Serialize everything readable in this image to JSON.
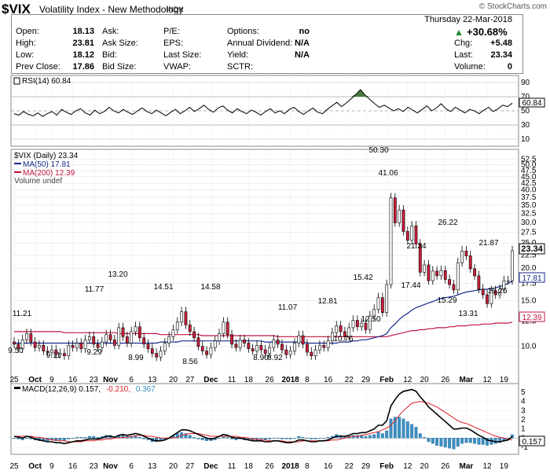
{
  "header": {
    "symbol": "$VIX",
    "name": "Volatility Index - New Methodology",
    "exchange": "INDX",
    "watermark": "© StockCharts.com"
  },
  "quote": {
    "open_label": "Open:",
    "open": "18.13",
    "high_label": "High:",
    "high": "23.81",
    "low_label": "Low:",
    "low": "18.12",
    "prev_close_label": "Prev Close:",
    "prev_close": "17.86",
    "ask_label": "Ask:",
    "ask_size_label": "Ask Size:",
    "bid_label": "Bid:",
    "bid_size_label": "Bid Size:",
    "pe_label": "P/E:",
    "eps_label": "EPS:",
    "last_size_label": "Last Size:",
    "vwap_label": "VWAP:",
    "options_label": "Options:",
    "options": "no",
    "dividend_label": "Annual Dividend:",
    "dividend": "N/A",
    "yield_label": "Yield:",
    "yield": "N/A",
    "sctr_label": "SCTR:",
    "date": "Thursday  22-Mar-2018",
    "pct_change": "+30.68%",
    "chg_label": "Chg:",
    "chg": "+5.48",
    "last_label": "Last:",
    "last": "23.34",
    "volume_label": "Volume:",
    "volume": "0"
  },
  "colors": {
    "up_candle": "#ffffff",
    "down_candle": "#cc1f3c",
    "ma50": "#1a2a8c",
    "ma200": "#c0143c",
    "rsi_line": "#000000",
    "rsi_fill": "#4a7a3a",
    "macd_line": "#000000",
    "signal_line": "#e0202a",
    "hist": "#3b8fc3"
  },
  "chart_data": [
    {
      "type": "line",
      "panel": "rsi",
      "legend": "RSI(14) 60.84",
      "last_value": "60.84",
      "y_ticks": [
        "90",
        "70",
        "50",
        "30",
        "10"
      ],
      "ylim": [
        0,
        100
      ],
      "values": [
        46,
        44,
        49,
        45,
        43,
        47,
        42,
        46,
        49,
        44,
        52,
        48,
        45,
        50,
        53,
        47,
        44,
        51,
        46,
        49,
        55,
        50,
        47,
        52,
        48,
        45,
        50,
        54,
        49,
        46,
        51,
        47,
        43,
        48,
        52,
        46,
        50,
        55,
        49,
        53,
        58,
        52,
        48,
        54,
        57,
        51,
        47,
        53,
        49,
        46,
        51,
        48,
        44,
        49,
        53,
        47,
        50,
        46,
        52,
        55,
        49,
        45,
        50,
        54,
        48,
        46,
        52,
        57,
        62,
        56,
        61,
        67,
        73,
        80,
        72,
        66,
        60,
        55,
        58,
        54,
        50,
        53,
        49,
        55,
        51,
        47,
        52,
        57,
        50,
        54,
        60,
        53,
        49,
        55,
        51,
        47,
        52,
        50,
        46,
        51,
        55,
        49,
        53,
        58,
        56,
        60.84
      ]
    },
    {
      "type": "candlestick",
      "panel": "price",
      "legend": [
        "$VIX (Daily) 23.34",
        "MA(50) 17.81",
        "MA(200) 12.39",
        "Volume undef"
      ],
      "y_ticks": [
        "52.5",
        "50.0",
        "47.5",
        "45.0",
        "42.5",
        "40.0",
        "37.5",
        "35.0",
        "32.5",
        "30.0",
        "27.5",
        "25.0",
        "22.5",
        "20.0",
        "17.5",
        "15.0",
        "12.5",
        "10.0"
      ],
      "x_ticks": [
        "25",
        "Oct",
        "9",
        "16",
        "23",
        "Nov",
        "6",
        "13",
        "20",
        "27",
        "Dec",
        "11",
        "18",
        "26",
        "2018",
        "8",
        "16",
        "22",
        "29",
        "Feb",
        "12",
        "20",
        "26",
        "Mar",
        "12",
        "19"
      ],
      "annotations": [
        "11.21",
        "9.50",
        "9.11",
        "11.77",
        "9.29",
        "13.20",
        "8.99",
        "14.51",
        "8.56",
        "14.58",
        "8.90",
        "11.07",
        "8.92",
        "10.76",
        "12.81",
        "12.50",
        "15.42",
        "50.30",
        "41.06",
        "21.34",
        "17.44",
        "26.22",
        "15.29",
        "13.31",
        "21.87",
        "16.26"
      ],
      "price_labels": {
        "last": "23.34",
        "ma50": "17.81",
        "ma200": "12.39"
      },
      "ylim": [
        7.5,
        55
      ],
      "scale": "log",
      "closes": [
        10.2,
        9.8,
        10.6,
        11.2,
        10.4,
        9.9,
        10.1,
        9.6,
        9.5,
        9.7,
        9.3,
        9.4,
        9.2,
        10.1,
        9.9,
        10.3,
        9.8,
        10.6,
        10.9,
        10.2,
        9.9,
        10.4,
        11.1,
        10.6,
        10.1,
        11.8,
        10.9,
        10.3,
        11.4,
        11.9,
        10.8,
        10.2,
        9.8,
        9.4,
        9.1,
        9.6,
        10.3,
        10.9,
        11.6,
        12.4,
        13.6,
        12.1,
        11.4,
        10.8,
        10.0,
        9.6,
        9.3,
        9.9,
        10.5,
        11.2,
        12.4,
        11.1,
        10.2,
        9.9,
        10.6,
        10.3,
        9.8,
        9.6,
        10.1,
        9.7,
        9.4,
        9.9,
        10.6,
        10.2,
        9.7,
        9.3,
        9.6,
        10.3,
        11.0,
        10.2,
        9.5,
        9.2,
        9.7,
        10.1,
        9.9,
        10.5,
        11.3,
        12.0,
        11.4,
        10.9,
        11.8,
        12.6,
        11.9,
        12.3,
        11.6,
        13.1,
        13.9,
        15.4,
        13.5,
        17.3,
        37.3,
        29.9,
        33.5,
        27.7,
        25.6,
        29.1,
        24.8,
        19.3,
        20.6,
        17.9,
        19.5,
        18.7,
        19.6,
        18.1,
        17.3,
        16.5,
        21.0,
        23.3,
        22.3,
        19.9,
        18.7,
        16.6,
        15.8,
        14.6,
        16.4,
        15.8,
        16.6,
        17.9,
        17.9,
        23.34
      ],
      "ma50": [
        10.3,
        10.3,
        10.3,
        10.3,
        10.3,
        10.3,
        10.3,
        10.3,
        10.3,
        10.3,
        10.3,
        10.3,
        10.3,
        10.3,
        10.3,
        10.3,
        10.3,
        10.3,
        10.3,
        10.3,
        10.3,
        10.3,
        10.3,
        10.3,
        10.3,
        10.3,
        10.3,
        10.3,
        10.3,
        10.3,
        10.3,
        10.3,
        10.3,
        10.3,
        10.3,
        10.4,
        10.4,
        10.4,
        10.4,
        10.4,
        10.5,
        10.5,
        10.5,
        10.5,
        10.5,
        10.5,
        10.5,
        10.5,
        10.5,
        10.5,
        10.5,
        10.5,
        10.5,
        10.5,
        10.5,
        10.5,
        10.5,
        10.5,
        10.5,
        10.5,
        10.4,
        10.4,
        10.4,
        10.4,
        10.4,
        10.4,
        10.4,
        10.4,
        10.4,
        10.4,
        10.3,
        10.3,
        10.3,
        10.3,
        10.3,
        10.3,
        10.3,
        10.3,
        10.4,
        10.4,
        10.4,
        10.5,
        10.5,
        10.6,
        10.6,
        10.7,
        10.8,
        10.9,
        11.0,
        11.2,
        11.8,
        12.2,
        12.7,
        13.1,
        13.4,
        13.8,
        14.1,
        14.3,
        14.5,
        14.7,
        14.9,
        15.1,
        15.3,
        15.4,
        15.5,
        15.6,
        15.8,
        16.0,
        16.2,
        16.3,
        16.4,
        16.5,
        16.6,
        16.6,
        16.7,
        16.8,
        17.0,
        17.2,
        17.5,
        17.81
      ],
      "ma200": [
        11.4,
        11.4,
        11.4,
        11.4,
        11.4,
        11.4,
        11.4,
        11.4,
        11.4,
        11.4,
        11.4,
        11.4,
        11.3,
        11.3,
        11.3,
        11.3,
        11.3,
        11.3,
        11.3,
        11.3,
        11.3,
        11.3,
        11.3,
        11.3,
        11.3,
        11.2,
        11.2,
        11.2,
        11.2,
        11.2,
        11.2,
        11.2,
        11.2,
        11.2,
        11.2,
        11.1,
        11.1,
        11.1,
        11.1,
        11.1,
        11.1,
        11.1,
        11.1,
        11.1,
        11.1,
        11.0,
        11.0,
        11.0,
        11.0,
        11.0,
        11.0,
        11.0,
        11.0,
        11.0,
        11.0,
        11.0,
        11.0,
        11.0,
        11.0,
        11.0,
        11.0,
        11.0,
        11.0,
        10.9,
        10.9,
        10.9,
        10.9,
        10.9,
        10.9,
        10.9,
        10.9,
        10.9,
        10.9,
        10.9,
        10.9,
        10.9,
        10.9,
        10.9,
        10.9,
        10.9,
        10.9,
        10.9,
        10.9,
        10.9,
        10.9,
        10.9,
        10.9,
        10.9,
        10.9,
        10.9,
        11.0,
        11.1,
        11.2,
        11.3,
        11.4,
        11.5,
        11.5,
        11.6,
        11.6,
        11.7,
        11.7,
        11.8,
        11.8,
        11.8,
        11.9,
        11.9,
        12.0,
        12.0,
        12.0,
        12.1,
        12.1,
        12.1,
        12.2,
        12.2,
        12.2,
        12.3,
        12.3,
        12.3,
        12.3,
        12.39
      ]
    },
    {
      "type": "line",
      "panel": "macd",
      "legend": "MACD(12,26,9) 0.157, -0.210, 0.367",
      "macd_label": "MACD(12,26,9) 0.157,",
      "signal_label": "-0.210,",
      "hist_label": "0.367",
      "last_value": "0.157",
      "y_ticks": [
        "5",
        "4",
        "3",
        "2",
        "1",
        "0",
        "-1"
      ],
      "ylim": [
        -1.6,
        5.6
      ],
      "macd": [
        0.2,
        0.1,
        0.0,
        0.2,
        0.1,
        -0.1,
        -0.2,
        -0.3,
        -0.4,
        -0.4,
        -0.5,
        -0.5,
        -0.6,
        -0.5,
        -0.4,
        -0.3,
        -0.3,
        -0.2,
        -0.1,
        -0.1,
        -0.1,
        0.0,
        0.2,
        0.2,
        0.1,
        0.3,
        0.4,
        0.3,
        0.4,
        0.5,
        0.4,
        0.2,
        0.0,
        -0.2,
        -0.3,
        -0.3,
        -0.2,
        0.0,
        0.3,
        0.6,
        0.9,
        0.9,
        0.8,
        0.6,
        0.4,
        0.2,
        0.0,
        -0.1,
        0.0,
        0.2,
        0.4,
        0.3,
        0.1,
        0.0,
        0.0,
        -0.1,
        -0.2,
        -0.3,
        -0.3,
        -0.3,
        -0.4,
        -0.4,
        -0.3,
        -0.3,
        -0.4,
        -0.5,
        -0.5,
        -0.4,
        -0.2,
        -0.2,
        -0.3,
        -0.4,
        -0.4,
        -0.3,
        -0.3,
        -0.2,
        0.0,
        0.2,
        0.2,
        0.2,
        0.3,
        0.5,
        0.5,
        0.6,
        0.6,
        0.8,
        1.0,
        1.4,
        1.4,
        1.9,
        3.5,
        4.2,
        4.8,
        5.1,
        5.2,
        5.3,
        5.1,
        4.5,
        4.0,
        3.4,
        3.0,
        2.6,
        2.2,
        1.8,
        1.4,
        1.0,
        1.0,
        1.1,
        1.1,
        0.9,
        0.6,
        0.3,
        0.1,
        -0.2,
        -0.3,
        -0.4,
        -0.4,
        -0.3,
        -0.2,
        0.157
      ],
      "signal": [
        0.2,
        0.2,
        0.2,
        0.2,
        0.2,
        0.1,
        0.1,
        0.0,
        -0.1,
        -0.2,
        -0.2,
        -0.3,
        -0.3,
        -0.4,
        -0.4,
        -0.4,
        -0.4,
        -0.3,
        -0.3,
        -0.3,
        -0.2,
        -0.2,
        -0.1,
        -0.1,
        0.0,
        0.0,
        0.1,
        0.1,
        0.2,
        0.2,
        0.3,
        0.3,
        0.2,
        0.2,
        0.1,
        0.0,
        0.0,
        0.0,
        0.0,
        0.1,
        0.3,
        0.4,
        0.5,
        0.5,
        0.5,
        0.4,
        0.3,
        0.2,
        0.2,
        0.2,
        0.2,
        0.2,
        0.2,
        0.2,
        0.1,
        0.1,
        0.0,
        -0.1,
        -0.1,
        -0.2,
        -0.2,
        -0.3,
        -0.3,
        -0.3,
        -0.3,
        -0.4,
        -0.4,
        -0.4,
        -0.4,
        -0.3,
        -0.3,
        -0.3,
        -0.3,
        -0.3,
        -0.3,
        -0.3,
        -0.2,
        -0.2,
        -0.1,
        0.0,
        0.1,
        0.2,
        0.2,
        0.3,
        0.4,
        0.5,
        0.6,
        0.7,
        0.9,
        1.1,
        1.4,
        1.9,
        2.5,
        3.0,
        3.4,
        3.8,
        3.9,
        4.0,
        3.9,
        3.8,
        3.6,
        3.4,
        3.1,
        2.8,
        2.5,
        2.2,
        1.9,
        1.7,
        1.6,
        1.4,
        1.2,
        1.0,
        0.8,
        0.6,
        0.4,
        0.2,
        0.1,
        0.0,
        -0.1,
        -0.21
      ],
      "x_ticks": [
        "25",
        "Oct",
        "9",
        "16",
        "23",
        "Nov",
        "6",
        "13",
        "20",
        "27",
        "Dec",
        "11",
        "18",
        "26",
        "2018",
        "8",
        "16",
        "22",
        "29",
        "Feb",
        "12",
        "20",
        "26",
        "Mar",
        "12",
        "19"
      ]
    }
  ]
}
